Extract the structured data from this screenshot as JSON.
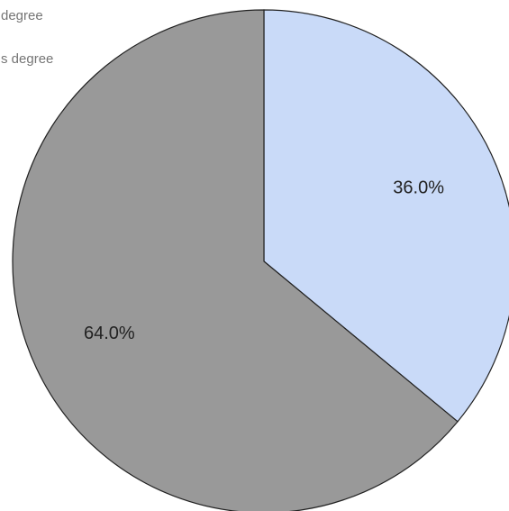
{
  "chart_data": {
    "type": "pie",
    "title": "",
    "legend_position": "top-left",
    "slices": [
      {
        "label": "degree",
        "value": 36.0,
        "display": "36.0%",
        "color": "#c9daf8"
      },
      {
        "label": "s degree",
        "value": 64.0,
        "display": "64.0%",
        "color": "#999999"
      }
    ],
    "stroke_color": "#222222",
    "start_angle_deg": 0,
    "direction": "clockwise"
  }
}
